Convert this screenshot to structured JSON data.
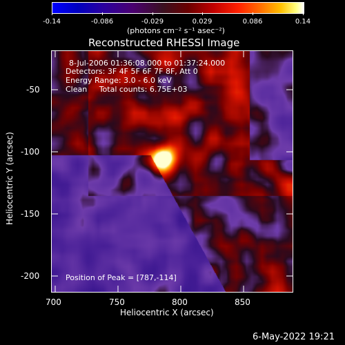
{
  "colorbar": {
    "ticks": [
      "-0.14",
      "-0.086",
      "-0.029",
      "0.029",
      "0.086",
      "0.14"
    ],
    "units": "(photons cm⁻² s⁻¹ asec⁻²)"
  },
  "plot": {
    "title": "Reconstructed RHESSI Image",
    "xlabel": "Heliocentric X (arcsec)",
    "ylabel": "Heliocentric Y (arcsec)",
    "xticks": [
      "700",
      "750",
      "800",
      "850"
    ],
    "yticks": [
      "-50",
      "-100",
      "-150",
      "-200"
    ]
  },
  "info": {
    "time_range": "8-Jul-2006 01:36:08.000 to 01:37:24.000",
    "detectors": "Detectors: 3F 4F 5F 6F 7F 8F, Att 0",
    "energy": "Energy Range: 3.0 - 6.0 keV",
    "clean": "Clean     Total counts: 6.75E+03",
    "peak": "Position of Peak = [787,-114]"
  },
  "footer": {
    "timestamp": "6-May-2022 19:21"
  },
  "chart_data": {
    "type": "heatmap",
    "title": "Reconstructed RHESSI Image",
    "xlabel": "Heliocentric X (arcsec)",
    "ylabel": "Heliocentric Y (arcsec)",
    "xlim": [
      700,
      890
    ],
    "ylim": [
      -220,
      -30
    ],
    "color_range": [
      -0.14,
      0.14
    ],
    "peak": [
      787,
      -114
    ],
    "colors": {
      "background": "#000000",
      "axis": "#ffffff"
    }
  }
}
